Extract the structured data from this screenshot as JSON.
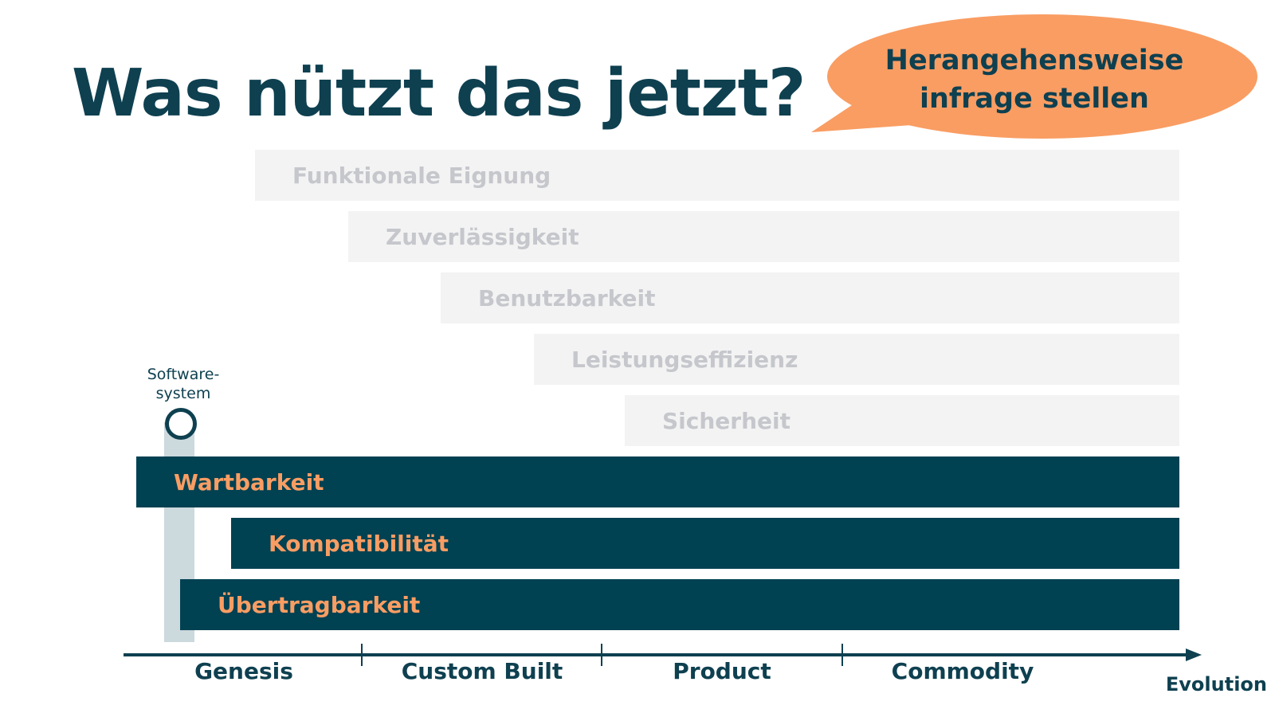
{
  "title": "Was nützt das jetzt?",
  "callout": {
    "line1": "Herangehensweise",
    "line2": "infrage stellen",
    "color": "#f99d63"
  },
  "system_marker": {
    "line1": "Software-",
    "line2": "system"
  },
  "characteristics": [
    {
      "label": "Funktionale Eignung",
      "style": "faded"
    },
    {
      "label": "Zuverlässigkeit",
      "style": "faded"
    },
    {
      "label": "Benutzbarkeit",
      "style": "faded"
    },
    {
      "label": "Leistungseffizienz",
      "style": "faded"
    },
    {
      "label": "Sicherheit",
      "style": "faded"
    },
    {
      "label": "Wartbarkeit",
      "style": "highlighted"
    },
    {
      "label": "Kompatibilität",
      "style": "highlighted"
    },
    {
      "label": "Übertragbarkeit",
      "style": "highlighted"
    }
  ],
  "axis": {
    "phases": [
      "Genesis",
      "Custom Built",
      "Product",
      "Commodity"
    ],
    "label": "Evolution"
  },
  "colors": {
    "dark": "#004152",
    "accent": "#f99d63",
    "faded_bg": "#f3f3f3",
    "faded_text": "#c5c7cc",
    "title": "#0e4050"
  }
}
